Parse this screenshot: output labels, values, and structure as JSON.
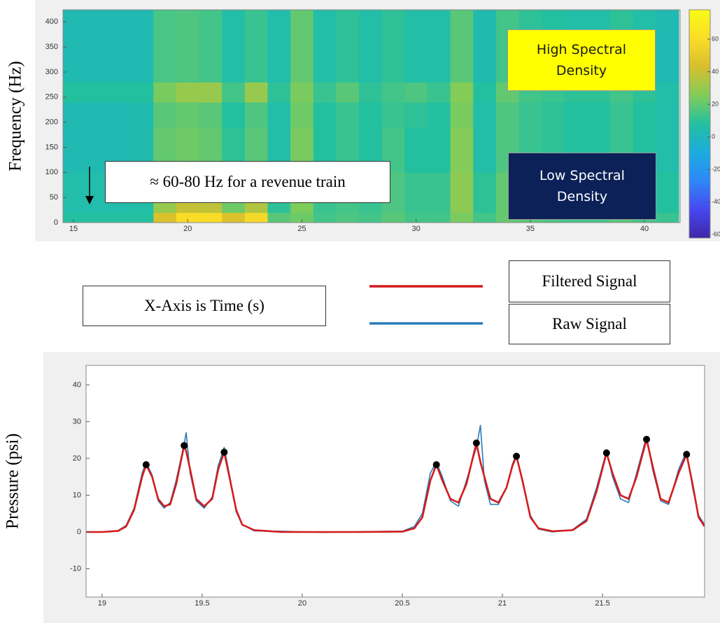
{
  "chart_data": [
    {
      "type": "heatmap",
      "ylabel": "Frequency (Hz)",
      "x_edges": [
        14.5,
        15.5,
        16.5,
        17.5,
        18.5,
        19.5,
        20.5,
        21.5,
        22.5,
        23.5,
        24.5,
        25.5,
        26.5,
        27.5,
        28.5,
        29.5,
        30.5,
        31.5,
        32.5,
        33.5,
        34.5,
        35.5,
        36.5,
        37.5,
        38.5,
        39.5,
        40.5,
        41.5
      ],
      "y_edges": [
        0,
        20,
        100,
        190,
        240,
        280,
        424
      ],
      "z": [
        [
          8,
          8,
          8,
          8,
          45,
          60,
          60,
          45,
          58,
          18,
          22,
          14,
          16,
          14,
          18,
          14,
          14,
          24,
          14,
          20,
          18,
          15,
          14,
          14,
          18,
          14,
          12
        ],
        [
          5,
          5,
          5,
          6,
          30,
          40,
          38,
          22,
          35,
          10,
          25,
          12,
          14,
          12,
          16,
          12,
          12,
          28,
          10,
          20,
          15,
          12,
          10,
          10,
          14,
          10,
          8
        ],
        [
          3,
          3,
          3,
          4,
          20,
          22,
          20,
          10,
          18,
          6,
          24,
          8,
          12,
          8,
          14,
          8,
          8,
          26,
          6,
          16,
          12,
          10,
          8,
          8,
          12,
          8,
          5
        ],
        [
          3,
          3,
          3,
          4,
          18,
          20,
          18,
          8,
          16,
          6,
          22,
          8,
          12,
          8,
          12,
          10,
          8,
          24,
          6,
          16,
          12,
          10,
          8,
          8,
          12,
          8,
          5
        ],
        [
          8,
          8,
          8,
          8,
          24,
          30,
          30,
          14,
          30,
          10,
          24,
          12,
          18,
          10,
          14,
          16,
          12,
          26,
          8,
          20,
          14,
          12,
          10,
          10,
          14,
          10,
          6
        ],
        [
          3,
          3,
          3,
          3,
          15,
          16,
          14,
          6,
          12,
          5,
          20,
          6,
          10,
          6,
          10,
          6,
          6,
          18,
          4,
          14,
          10,
          8,
          6,
          6,
          10,
          6,
          3
        ]
      ],
      "xlim": [
        14.54,
        41.56
      ],
      "ylim": [
        0,
        424
      ],
      "xticks": [
        15,
        20,
        25,
        30,
        35,
        40
      ],
      "yticks": [
        0,
        50,
        100,
        150,
        200,
        250,
        300,
        350,
        400
      ],
      "clim": [
        -62,
        78
      ],
      "cticks": [
        -60,
        -40,
        -20,
        0,
        20,
        40,
        60
      ],
      "colormap": [
        "#3e26a8",
        "#4748f0",
        "#2e87f7",
        "#1cacdf",
        "#23c0a0",
        "#81cc59",
        "#d6bf2e",
        "#fadd27",
        "#f9fb14"
      ],
      "annotations": [
        "High Spectral Density",
        "Low Spectral Density",
        "≈ 60-80 Hz for a revenue train",
        "X-Axis is Time (s)"
      ]
    },
    {
      "type": "line",
      "ylabel": "Pressure (psi)",
      "x": [
        18.92,
        19.0,
        19.08,
        19.12,
        19.16,
        19.2,
        19.22,
        19.25,
        19.28,
        19.31,
        19.34,
        19.37,
        19.41,
        19.42,
        19.44,
        19.47,
        19.51,
        19.55,
        19.58,
        19.61,
        19.64,
        19.67,
        19.7,
        19.76,
        19.9,
        20.1,
        20.3,
        20.5,
        20.56,
        20.6,
        20.64,
        20.67,
        20.7,
        20.74,
        20.78,
        20.82,
        20.87,
        20.89,
        20.91,
        20.94,
        20.98,
        21.02,
        21.05,
        21.07,
        21.1,
        21.14,
        21.18,
        21.25,
        21.35,
        21.42,
        21.47,
        21.52,
        21.55,
        21.59,
        21.63,
        21.67,
        21.72,
        21.75,
        21.79,
        21.83,
        21.88,
        21.92,
        21.95,
        21.98,
        22.01
      ],
      "series": [
        {
          "name": "Raw Signal",
          "color": "#2a7ab8",
          "values": [
            0,
            0,
            0.4,
            1.8,
            6.5,
            16,
            19,
            15.5,
            8.5,
            6.5,
            8,
            14,
            24,
            27,
            16,
            8.5,
            6.5,
            9.5,
            18,
            23,
            14.5,
            5.5,
            2,
            0.3,
            0.2,
            -0.1,
            0.1,
            0.2,
            1.5,
            5,
            16,
            19,
            15,
            8.5,
            7,
            14,
            23,
            29,
            14,
            7.5,
            7.5,
            12,
            18.5,
            21,
            13.5,
            4.5,
            0.8,
            0,
            0.6,
            3.5,
            12,
            22,
            15,
            9,
            8,
            16,
            26,
            17,
            8.5,
            7.5,
            17,
            22,
            12,
            4.5,
            2
          ]
        },
        {
          "name": "Filtered Signal",
          "color": "#d41c1c",
          "values": [
            0,
            0,
            0.3,
            1.5,
            6,
            15,
            18.3,
            15,
            9,
            7,
            7.5,
            13,
            23.5,
            22,
            17,
            9,
            7,
            9,
            17,
            21.7,
            14,
            6,
            2,
            0.5,
            0,
            0,
            0,
            0.1,
            1,
            4,
            14,
            18.3,
            14,
            9,
            8,
            13,
            24.2,
            19,
            15,
            9,
            8,
            12,
            18,
            20.6,
            14,
            4,
            1,
            0.2,
            0.5,
            3,
            11,
            21.5,
            16,
            10,
            9,
            15,
            25.2,
            18,
            9,
            8,
            16,
            21.1,
            13,
            4,
            1.5
          ]
        }
      ],
      "markers": {
        "color": "#000000",
        "x": [
          19.22,
          19.41,
          19.61,
          20.67,
          20.87,
          21.07,
          21.52,
          21.72,
          21.92
        ],
        "values": [
          18.3,
          23.5,
          21.7,
          18.3,
          24.2,
          20.6,
          21.5,
          25.2,
          21.1
        ]
      },
      "xlim": [
        18.92,
        22.01
      ],
      "ylim": [
        -17.7,
        45.3
      ],
      "xticks": [
        19,
        19.5,
        20,
        20.5,
        21,
        21.5
      ],
      "yticks": [
        -10,
        0,
        10,
        20,
        30,
        40
      ]
    }
  ]
}
